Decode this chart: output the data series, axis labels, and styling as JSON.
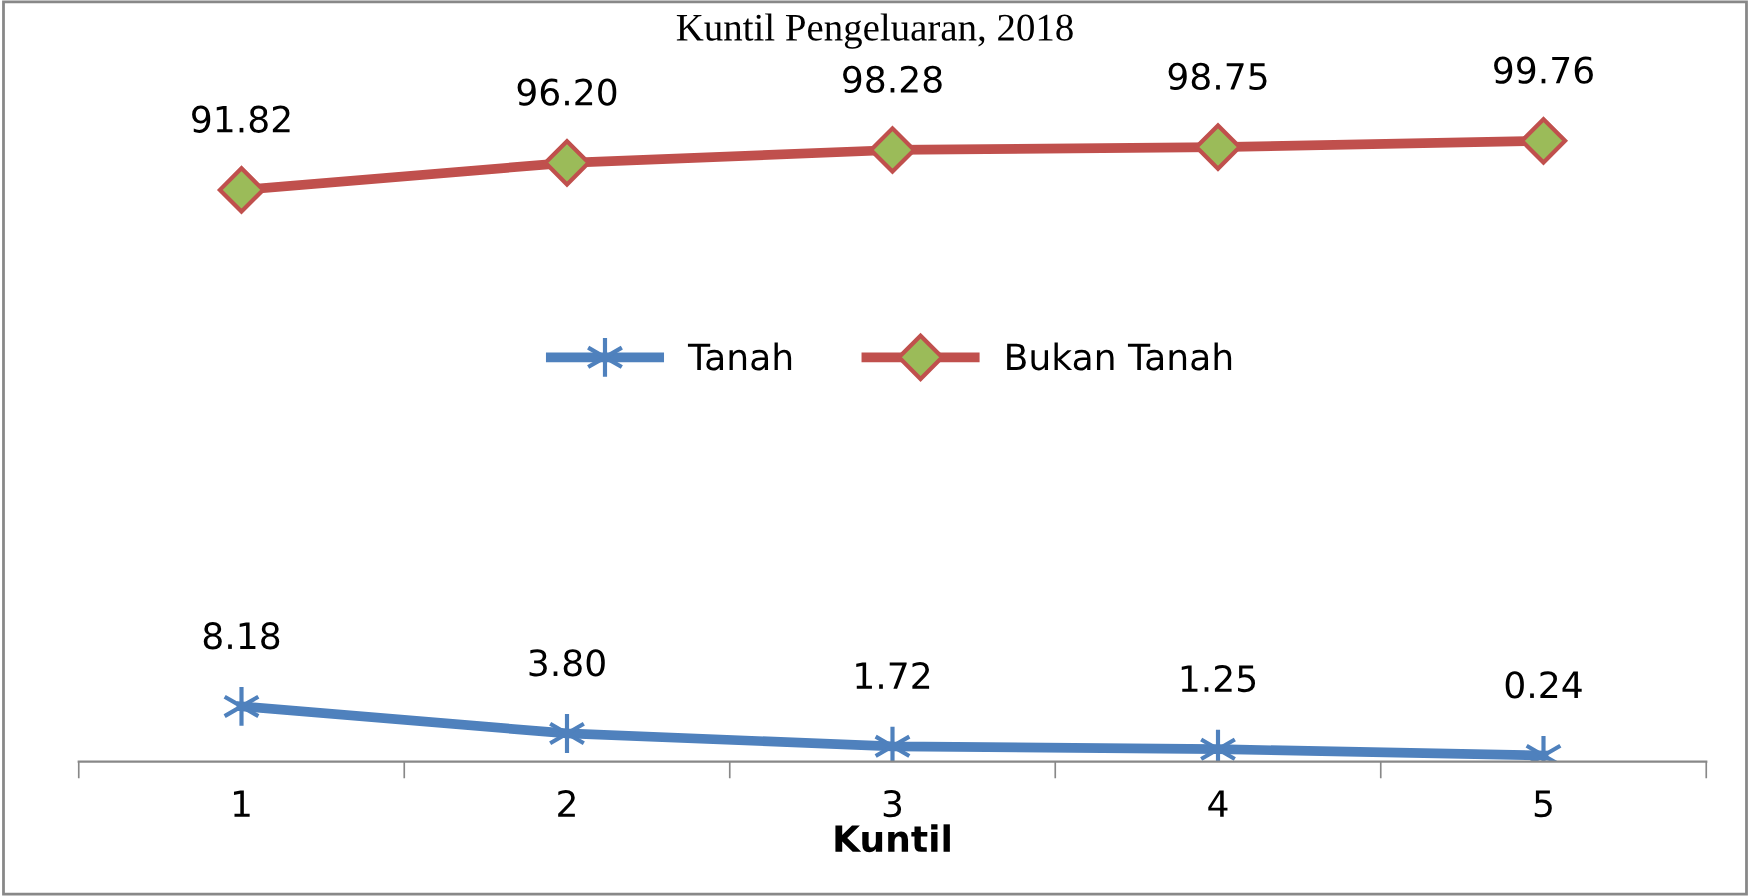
{
  "chart_data": {
    "type": "line",
    "title": "Kuntil Pengeluaran, 2018",
    "xlabel": "Kuntil",
    "categories": [
      "1",
      "2",
      "3",
      "4",
      "5"
    ],
    "series": [
      {
        "name": "Tanah",
        "color": "#4f81bd",
        "marker": "cross",
        "values": [
          8.18,
          3.8,
          1.72,
          1.25,
          0.24
        ],
        "value_labels": [
          "8.18",
          "3.80",
          "1.72",
          "1.25",
          "0.24"
        ]
      },
      {
        "name": "Bukan Tanah",
        "color": "#c0504d",
        "marker": "diamond",
        "values": [
          91.82,
          96.2,
          98.28,
          98.75,
          99.76
        ],
        "value_labels": [
          "91.82",
          "96.20",
          "98.28",
          "98.75",
          "99.76"
        ]
      }
    ],
    "legend": "center",
    "line_style": "solid"
  }
}
